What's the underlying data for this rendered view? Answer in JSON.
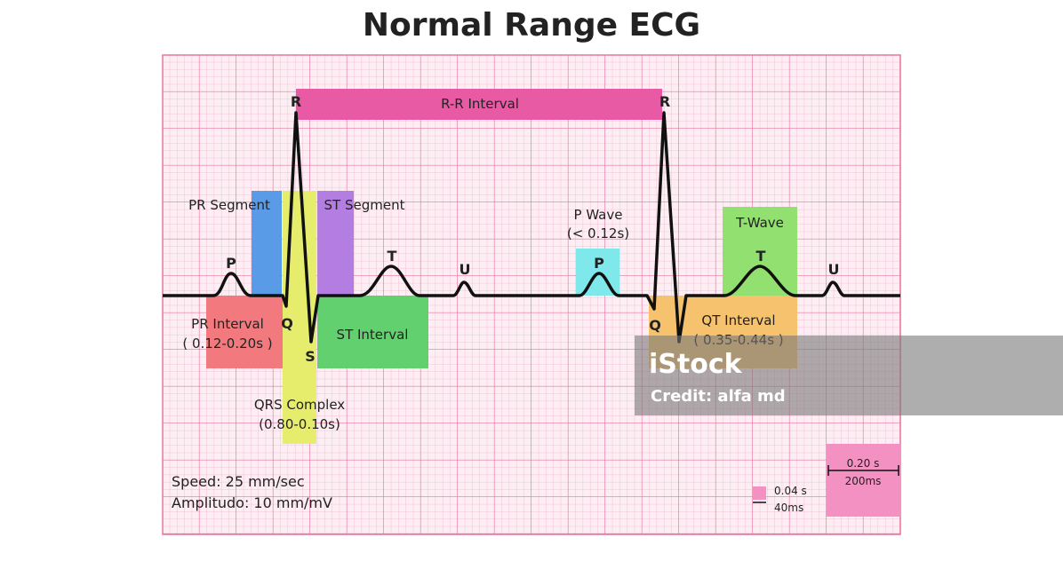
{
  "title": "Normal Range ECG",
  "waves": {
    "r1": "R",
    "r2": "R",
    "p1": "P",
    "t1": "T",
    "u1": "U",
    "p2": "P",
    "t2": "T",
    "u2": "U",
    "q1": "Q",
    "s1": "S",
    "q2": "Q"
  },
  "intervals": {
    "rr": "R-R Interval",
    "pr_segment": "PR Segment",
    "st_segment": "ST Segment",
    "p_wave": {
      "label": "P Wave",
      "range": "(< 0.12s)"
    },
    "t_wave": "T-Wave",
    "pr_interval": {
      "label": "PR Interval",
      "range": "( 0.12-0.20s )"
    },
    "st_interval": "ST Interval",
    "qrs_complex": {
      "label": "QRS Complex",
      "range": "(0.80-0.10s)"
    },
    "qt_interval": {
      "label": "QT Interval",
      "range": "( 0.35-0.44s )"
    }
  },
  "settings": {
    "speed": "Speed: 25 mm/sec",
    "amplitude": "Amplitudo: 10 mm/mV"
  },
  "scale": {
    "small": {
      "time": "0.04 s",
      "ms": "40ms"
    },
    "large": {
      "time": "0.20 s",
      "ms": "200ms"
    }
  },
  "watermark": {
    "brand": "iStock",
    "credit": "Credit: alfa md"
  }
}
